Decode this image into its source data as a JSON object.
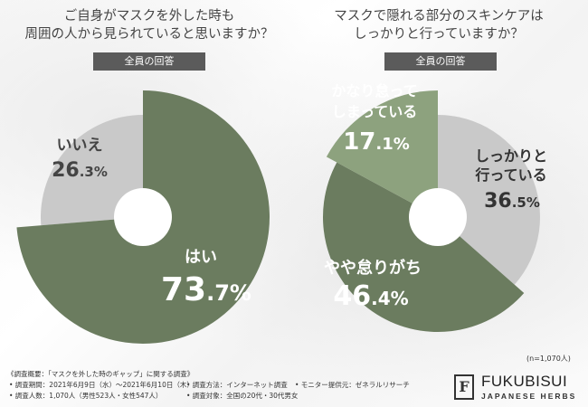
{
  "left": {
    "title_line1": "ご自身がマスクを外した時も",
    "title_line2": "周囲の人から見られていると思いますか？",
    "badge": "全員の回答"
  },
  "right": {
    "title_line1": "マスクで隠れる部分のスキンケアは",
    "title_line2": "しっかりと行っていますか？",
    "badge": "全員の回答"
  },
  "sample_note": "(n=1,070人)",
  "footer": {
    "heading": "《調査概要：「マスクを外した時のギャップ」に関する調査》",
    "period": "• 調査期間：2021年6月9日（水）〜2021年6月10日（木）",
    "method": "• 調査方法：インターネット調査",
    "monitor": "• モニター提供元：ゼネラルリサーチ",
    "people": "• 調査人数：1,070人（男性523人・女性547人）",
    "target": "• 調査対象：全国の20代・30代男女"
  },
  "logo": {
    "mark": "F",
    "name": "FUKUBISUI",
    "sub": "JAPANESE HERBS"
  },
  "colors": {
    "dark_green": "#6b7c5f",
    "light_green": "#8da27e",
    "gray": "#c9c9c9",
    "white": "#ffffff"
  },
  "chart_data": [
    {
      "type": "pie",
      "title": "ご自身がマスクを外した時も周囲の人から見られていると思いますか？",
      "categories": [
        "はい",
        "いいえ"
      ],
      "values": [
        73.7,
        26.3
      ],
      "unit": "%"
    },
    {
      "type": "pie",
      "title": "マスクで隠れる部分のスキンケアはしっかりと行っていますか？",
      "categories": [
        "しっかりと行っている",
        "やや怠りがち",
        "かなり怠ってしまっている"
      ],
      "values": [
        36.5,
        46.4,
        17.1
      ],
      "unit": "%"
    }
  ]
}
